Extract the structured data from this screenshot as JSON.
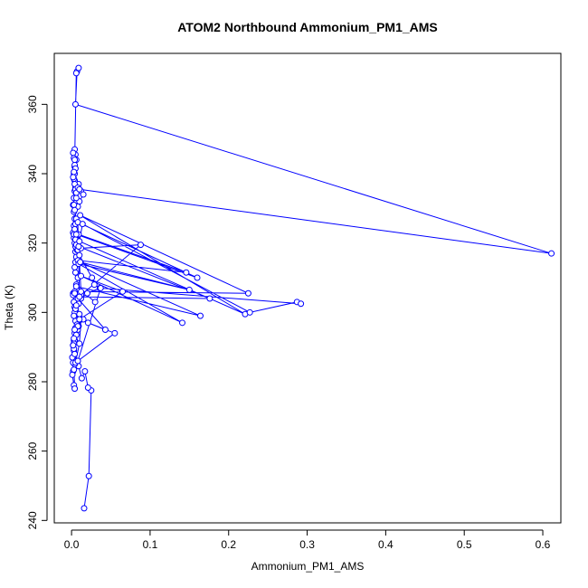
{
  "chart_data": {
    "type": "scatter",
    "title": "ATOM2 Northbound Ammonium_PM1_AMS",
    "xlabel": "Ammonium_PM1_AMS",
    "ylabel": "Theta (K)",
    "xlim": [
      -0.022,
      0.623
    ],
    "ylim": [
      239.3,
      374.7
    ],
    "x_ticks": [
      0.0,
      0.1,
      0.2,
      0.3,
      0.4,
      0.5,
      0.6
    ],
    "x_tick_labels": [
      "0.0",
      "0.1",
      "0.2",
      "0.3",
      "0.4",
      "0.5",
      "0.6"
    ],
    "y_ticks": [
      240,
      260,
      280,
      300,
      320,
      340,
      360
    ],
    "y_tick_labels": [
      "240",
      "260",
      "280",
      "300",
      "320",
      "340",
      "360"
    ],
    "series_color": "#0000ff",
    "grid": false,
    "legend": "none",
    "series": [
      {
        "mode": "lines+markers",
        "x": [
          0.016,
          0.022,
          0.025,
          0.021,
          0.017,
          0.013,
          0.009,
          0.006,
          0.004,
          0.002,
          0.001,
          0.003,
          0.004,
          0.003,
          0.002,
          0.001,
          0.002,
          0.003,
          0.005,
          0.008,
          0.012,
          0.009,
          0.006,
          0.004,
          0.003,
          0.002,
          0.004,
          0.006,
          0.008,
          0.005,
          0.004,
          0.005,
          0.006,
          0.005,
          0.007,
          0.005,
          0.004,
          0.003,
          0.002,
          0.003,
          0.004,
          0.003,
          0.002,
          0.003,
          0.004,
          0.006,
          0.009,
          0.012,
          0.015,
          0.01,
          0.008,
          0.006,
          0.005,
          0.004,
          0.003,
          0.004,
          0.006,
          0.005,
          0.004,
          0.002,
          0.003,
          0.004,
          0.005,
          0.004,
          0.003,
          0.004,
          0.005,
          0.006,
          0.008,
          0.01,
          0.611,
          0.005,
          0.007,
          0.009,
          0.006,
          0.004,
          0.003,
          0.002,
          0.003,
          0.004,
          0.006,
          0.005,
          0.004,
          0.003,
          0.005,
          0.006,
          0.008,
          0.01,
          0.026,
          0.029,
          0.036,
          0.02,
          0.012,
          0.009,
          0.005,
          0.004,
          0.003,
          0.005,
          0.007,
          0.005,
          0.004,
          0.003,
          0.002,
          0.003,
          0.004,
          0.006,
          0.005,
          0.01,
          0.012,
          0.008,
          0.006,
          0.004,
          0.003,
          0.002,
          0.003,
          0.004,
          0.005,
          0.003,
          0.002,
          0.004,
          0.008,
          0.043,
          0.021,
          0.015,
          0.01,
          0.006,
          0.012,
          0.088,
          0.012,
          0.009,
          0.146,
          0.008,
          0.006,
          0.16,
          0.008,
          0.01,
          0.176,
          0.009,
          0.012,
          0.225,
          0.011,
          0.221,
          0.01,
          0.014,
          0.227,
          0.287,
          0.292,
          0.037,
          0.008,
          0.055,
          0.01,
          0.065,
          0.012,
          0.141,
          0.009,
          0.15,
          0.011,
          0.164,
          0.006,
          0.03
        ],
        "y": [
          243.5,
          252.8,
          277.5,
          278.3,
          283.0,
          281.0,
          284.5,
          286.0,
          285.0,
          283.0,
          282.0,
          279.0,
          278.0,
          283.5,
          285.5,
          287.0,
          290.5,
          289.0,
          291.5,
          295.0,
          298.0,
          296.0,
          300.0,
          301.5,
          303.0,
          305.5,
          306.0,
          308.0,
          310.0,
          311.5,
          313.0,
          314.5,
          316.0,
          317.5,
          318.0,
          319.0,
          320.0,
          321.5,
          323.0,
          325.0,
          327.0,
          329.0,
          331.0,
          333.0,
          335.0,
          336.5,
          337.0,
          335.0,
          334.0,
          332.0,
          330.5,
          333.0,
          336.0,
          338.0,
          340.0,
          342.0,
          344.0,
          345.5,
          347.0,
          346.0,
          344.5,
          342.5,
          341.5,
          340.0,
          338.5,
          337.0,
          335.5,
          334.5,
          336.0,
          335.5,
          317.0,
          360.0,
          369.5,
          370.5,
          369.0,
          344.0,
          340.5,
          339.0,
          331.0,
          329.5,
          327.0,
          325.5,
          324.0,
          322.5,
          321.0,
          319.5,
          318.0,
          316.5,
          310.0,
          308.0,
          307.0,
          305.5,
          304.0,
          302.5,
          301.0,
          300.0,
          299.0,
          297.5,
          296.5,
          295.5,
          294.0,
          292.0,
          290.5,
          289.5,
          288.0,
          286.0,
          285.5,
          291.0,
          298.0,
          296.0,
          293.5,
          292.0,
          291.0,
          290.5,
          292.5,
          295.0,
          301.0,
          303.0,
          305.0,
          305.5,
          304.0,
          295.0,
          297.0,
          298.0,
          299.5,
          302.0,
          305.0,
          319.5,
          318.5,
          322.5,
          311.5,
          315.0,
          322.5,
          310.0,
          326.0,
          304.5,
          304.0,
          319.0,
          306.0,
          305.5,
          328.0,
          299.5,
          320.5,
          325.5,
          300.0,
          303.0,
          302.5,
          307.0,
          286.0,
          294.0,
          298.0,
          306.0,
          310.5,
          297.0,
          314.0,
          306.5,
          314.5,
          299.0,
          307.5,
          303.0
        ]
      }
    ]
  }
}
